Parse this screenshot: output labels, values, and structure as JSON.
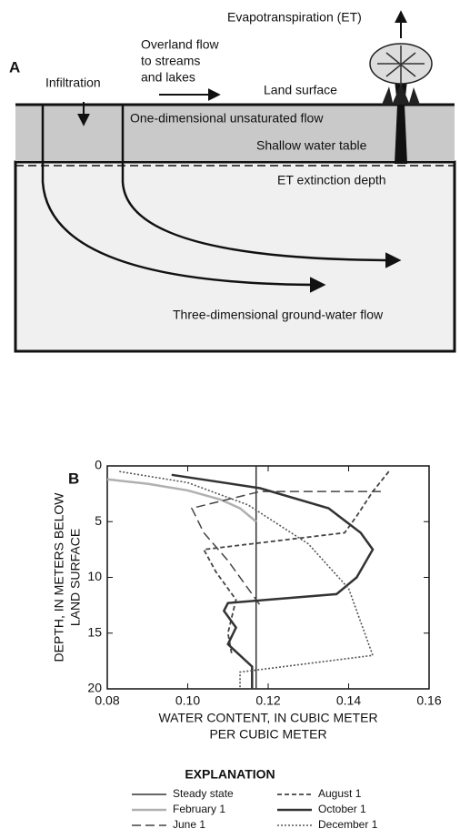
{
  "panel_a": {
    "label": "A",
    "evapotranspiration": "Evapotranspiration (ET)",
    "overland_flow": [
      "Overland flow",
      "to streams",
      "and lakes"
    ],
    "infiltration": "Infiltration",
    "land_surface": "Land surface",
    "unsaturated_flow": "One-dimensional unsaturated flow",
    "water_table": "Shallow water table",
    "extinction_depth": "ET extinction depth",
    "groundwater_flow": "Three-dimensional ground-water flow"
  },
  "chart_data": {
    "type": "line",
    "label": "B",
    "x_label": [
      "WATER CONTENT, IN CUBIC METER",
      "PER CUBIC METER"
    ],
    "y_label": [
      "DEPTH, IN METERS BELOW",
      "LAND SURFACE"
    ],
    "xlim": [
      0.08,
      0.16
    ],
    "xticks": [
      0.08,
      {
        "value": 0.1,
        "label": "0.10"
      },
      0.12,
      0.14,
      0.16
    ],
    "ylim": [
      0,
      20
    ],
    "yticks": [
      0,
      5,
      10,
      15,
      20
    ],
    "y_inverted": true,
    "grid": false,
    "legend_title": "EXPLANATION",
    "series": [
      {
        "name": "Steady state",
        "color": "#333333",
        "line_style": "solid",
        "x": [
          0.117,
          0.117
        ],
        "y": [
          0,
          20
        ]
      },
      {
        "name": "February 1",
        "color": "#b0b0b0",
        "line_style": "thick",
        "x": [
          0.08,
          0.09,
          0.1,
          0.108,
          0.113,
          0.117
        ],
        "y": [
          1.2,
          1.6,
          2.2,
          3.0,
          3.8,
          5.0
        ]
      },
      {
        "name": "June 1",
        "color": "#444444",
        "line_style": "long-dash",
        "x": [
          0.148,
          0.118,
          0.11,
          0.101,
          0.104,
          0.11,
          0.114,
          0.118
        ],
        "y": [
          2.3,
          2.3,
          3.0,
          3.8,
          6.0,
          8.5,
          10.5,
          12.5
        ]
      },
      {
        "name": "August 1",
        "color": "#444444",
        "line_style": "short-dash",
        "x": [
          0.15,
          0.146,
          0.142,
          0.139,
          0.104,
          0.107,
          0.112,
          0.11,
          0.111
        ],
        "y": [
          0.5,
          2.3,
          4.5,
          6.0,
          7.5,
          9.5,
          12.0,
          15.0,
          17.0
        ]
      },
      {
        "name": "October 1",
        "color": "#333333",
        "line_style": "thick",
        "x": [
          0.096,
          0.118,
          0.135,
          0.143,
          0.146,
          0.142,
          0.137,
          0.11,
          0.109,
          0.112,
          0.11,
          0.116,
          0.116
        ],
        "y": [
          0.8,
          2.0,
          3.8,
          6.0,
          7.5,
          10.0,
          11.5,
          12.3,
          13.0,
          14.5,
          16.0,
          18.0,
          20.0
        ]
      },
      {
        "name": "December 1",
        "color": "#555555",
        "line_style": "dotted",
        "x": [
          0.083,
          0.1,
          0.115,
          0.13,
          0.14,
          0.146,
          0.113,
          0.113
        ],
        "y": [
          0.5,
          1.5,
          3.5,
          7.0,
          11.0,
          17.0,
          18.5,
          20.0
        ]
      }
    ]
  }
}
